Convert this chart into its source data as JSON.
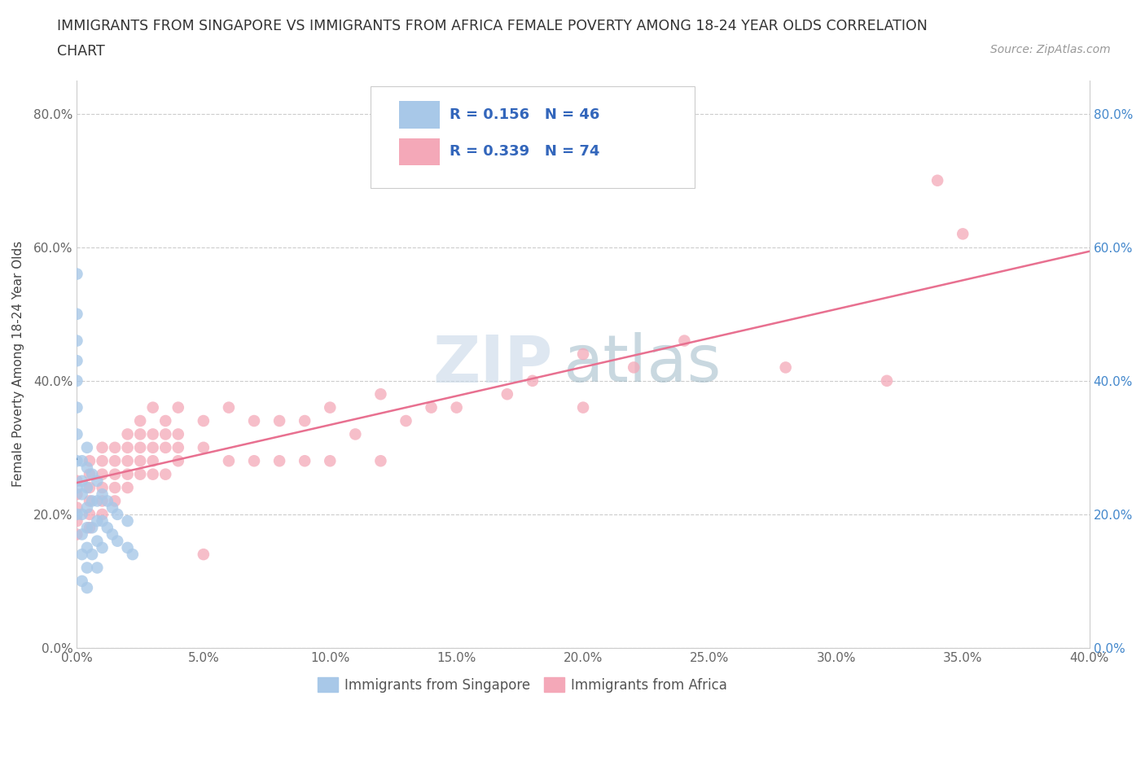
{
  "title_line1": "IMMIGRANTS FROM SINGAPORE VS IMMIGRANTS FROM AFRICA FEMALE POVERTY AMONG 18-24 YEAR OLDS CORRELATION",
  "title_line2": "CHART",
  "source_text": "Source: ZipAtlas.com",
  "ylabel": "Female Poverty Among 18-24 Year Olds",
  "xlim": [
    0.0,
    0.4
  ],
  "ylim": [
    0.0,
    0.85
  ],
  "xticks": [
    0.0,
    0.05,
    0.1,
    0.15,
    0.2,
    0.25,
    0.3,
    0.35,
    0.4
  ],
  "yticks": [
    0.0,
    0.2,
    0.4,
    0.6,
    0.8
  ],
  "ytick_labels": [
    "0.0%",
    "20.0%",
    "40.0%",
    "60.0%",
    "80.0%"
  ],
  "xtick_labels": [
    "0.0%",
    "5.0%",
    "10.0%",
    "15.0%",
    "20.0%",
    "25.0%",
    "30.0%",
    "35.0%",
    "40.0%"
  ],
  "singapore_color": "#a8c8e8",
  "africa_color": "#f4a8b8",
  "singapore_line_color": "#4477aa",
  "africa_line_color": "#e87090",
  "singapore_R": 0.156,
  "singapore_N": 46,
  "africa_R": 0.339,
  "africa_N": 74,
  "legend_label_singapore": "Immigrants from Singapore",
  "legend_label_africa": "Immigrants from Africa",
  "watermark_zip": "ZIP",
  "watermark_atlas": "atlas",
  "singapore_x": [
    0.0,
    0.0,
    0.0,
    0.0,
    0.0,
    0.0,
    0.0,
    0.0,
    0.0,
    0.0,
    0.002,
    0.002,
    0.002,
    0.002,
    0.002,
    0.002,
    0.002,
    0.004,
    0.004,
    0.004,
    0.004,
    0.004,
    0.004,
    0.004,
    0.004,
    0.006,
    0.006,
    0.006,
    0.006,
    0.008,
    0.008,
    0.008,
    0.008,
    0.008,
    0.01,
    0.01,
    0.01,
    0.012,
    0.012,
    0.014,
    0.014,
    0.016,
    0.016,
    0.02,
    0.02,
    0.022
  ],
  "singapore_y": [
    0.56,
    0.5,
    0.46,
    0.43,
    0.4,
    0.36,
    0.32,
    0.28,
    0.24,
    0.2,
    0.28,
    0.25,
    0.23,
    0.2,
    0.17,
    0.14,
    0.1,
    0.3,
    0.27,
    0.24,
    0.21,
    0.18,
    0.15,
    0.12,
    0.09,
    0.26,
    0.22,
    0.18,
    0.14,
    0.25,
    0.22,
    0.19,
    0.16,
    0.12,
    0.23,
    0.19,
    0.15,
    0.22,
    0.18,
    0.21,
    0.17,
    0.2,
    0.16,
    0.19,
    0.15,
    0.14
  ],
  "africa_x": [
    0.0,
    0.0,
    0.0,
    0.0,
    0.0,
    0.005,
    0.005,
    0.005,
    0.005,
    0.005,
    0.005,
    0.01,
    0.01,
    0.01,
    0.01,
    0.01,
    0.01,
    0.015,
    0.015,
    0.015,
    0.015,
    0.015,
    0.02,
    0.02,
    0.02,
    0.02,
    0.02,
    0.025,
    0.025,
    0.025,
    0.025,
    0.025,
    0.03,
    0.03,
    0.03,
    0.03,
    0.03,
    0.035,
    0.035,
    0.035,
    0.035,
    0.04,
    0.04,
    0.04,
    0.04,
    0.05,
    0.05,
    0.05,
    0.06,
    0.06,
    0.07,
    0.07,
    0.08,
    0.08,
    0.09,
    0.09,
    0.1,
    0.1,
    0.11,
    0.12,
    0.12,
    0.13,
    0.14,
    0.15,
    0.17,
    0.18,
    0.2,
    0.2,
    0.22,
    0.24,
    0.28,
    0.32,
    0.34,
    0.35
  ],
  "africa_y": [
    0.25,
    0.23,
    0.21,
    0.19,
    0.17,
    0.28,
    0.26,
    0.24,
    0.22,
    0.2,
    0.18,
    0.3,
    0.28,
    0.26,
    0.24,
    0.22,
    0.2,
    0.3,
    0.28,
    0.26,
    0.24,
    0.22,
    0.32,
    0.3,
    0.28,
    0.26,
    0.24,
    0.34,
    0.32,
    0.3,
    0.28,
    0.26,
    0.36,
    0.32,
    0.3,
    0.28,
    0.26,
    0.34,
    0.32,
    0.3,
    0.26,
    0.36,
    0.32,
    0.3,
    0.28,
    0.34,
    0.3,
    0.14,
    0.36,
    0.28,
    0.34,
    0.28,
    0.34,
    0.28,
    0.34,
    0.28,
    0.36,
    0.28,
    0.32,
    0.38,
    0.28,
    0.34,
    0.36,
    0.36,
    0.38,
    0.4,
    0.44,
    0.36,
    0.42,
    0.46,
    0.42,
    0.4,
    0.7,
    0.62
  ]
}
